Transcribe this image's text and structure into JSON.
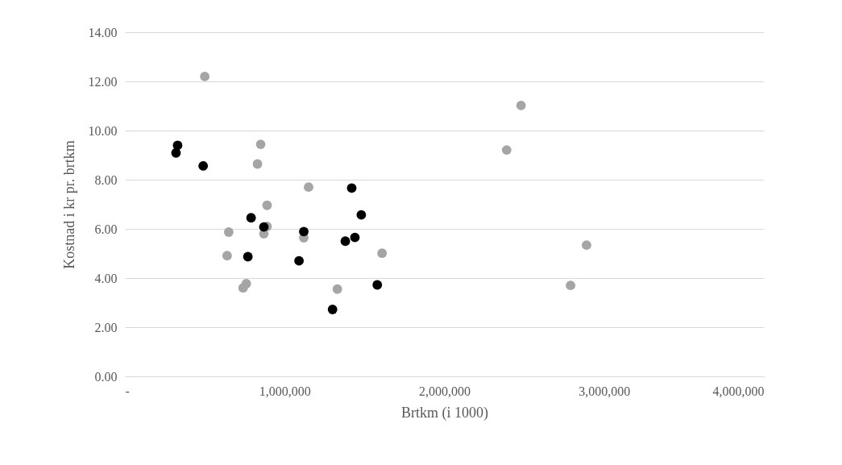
{
  "chart_data": {
    "type": "scatter",
    "xlabel": "Brtkm (i 1000)",
    "ylabel": "Kostnad i kr pr. brtkm",
    "xlim": [
      0,
      4000000
    ],
    "xticks": [
      {
        "value": 0,
        "label": "-"
      },
      {
        "value": 1000000,
        "label": "1,000,000"
      },
      {
        "value": 2000000,
        "label": "2,000,000"
      },
      {
        "value": 3000000,
        "label": "3,000,000"
      },
      {
        "value": 4000000,
        "label": "4,000,000"
      }
    ],
    "ylim": [
      0,
      14
    ],
    "yticks": [
      {
        "value": 0,
        "label": "0.00"
      },
      {
        "value": 2,
        "label": "2.00"
      },
      {
        "value": 4,
        "label": "4.00"
      },
      {
        "value": 6,
        "label": "6.00"
      },
      {
        "value": 8,
        "label": "8.00"
      },
      {
        "value": 10,
        "label": "10.00"
      },
      {
        "value": 12,
        "label": "12.00"
      },
      {
        "value": 14,
        "label": "14.00"
      }
    ],
    "grid": "y",
    "marker": "circle",
    "legend": false,
    "series": [
      {
        "color": "#a5a5a5",
        "x": [
          500000,
          850000,
          830000,
          1150000,
          890000,
          890000,
          870000,
          650000,
          640000,
          760000,
          740000,
          1120000,
          1330000,
          1610000,
          2480000,
          2390000,
          2890000,
          2790000
        ],
        "values": [
          12.2,
          9.44,
          8.64,
          7.7,
          6.96,
          6.1,
          5.8,
          5.87,
          4.91,
          3.77,
          3.6,
          5.64,
          3.55,
          5.01,
          11.02,
          9.21,
          5.34,
          3.7
        ]
      },
      {
        "color": "#000000",
        "x": [
          330000,
          320000,
          490000,
          1420000,
          1480000,
          790000,
          870000,
          1120000,
          1440000,
          1380000,
          770000,
          1090000,
          1580000,
          1300000
        ],
        "values": [
          9.4,
          9.09,
          8.56,
          7.66,
          6.57,
          6.45,
          6.08,
          5.89,
          5.65,
          5.5,
          4.87,
          4.7,
          3.72,
          2.72
        ]
      }
    ]
  }
}
